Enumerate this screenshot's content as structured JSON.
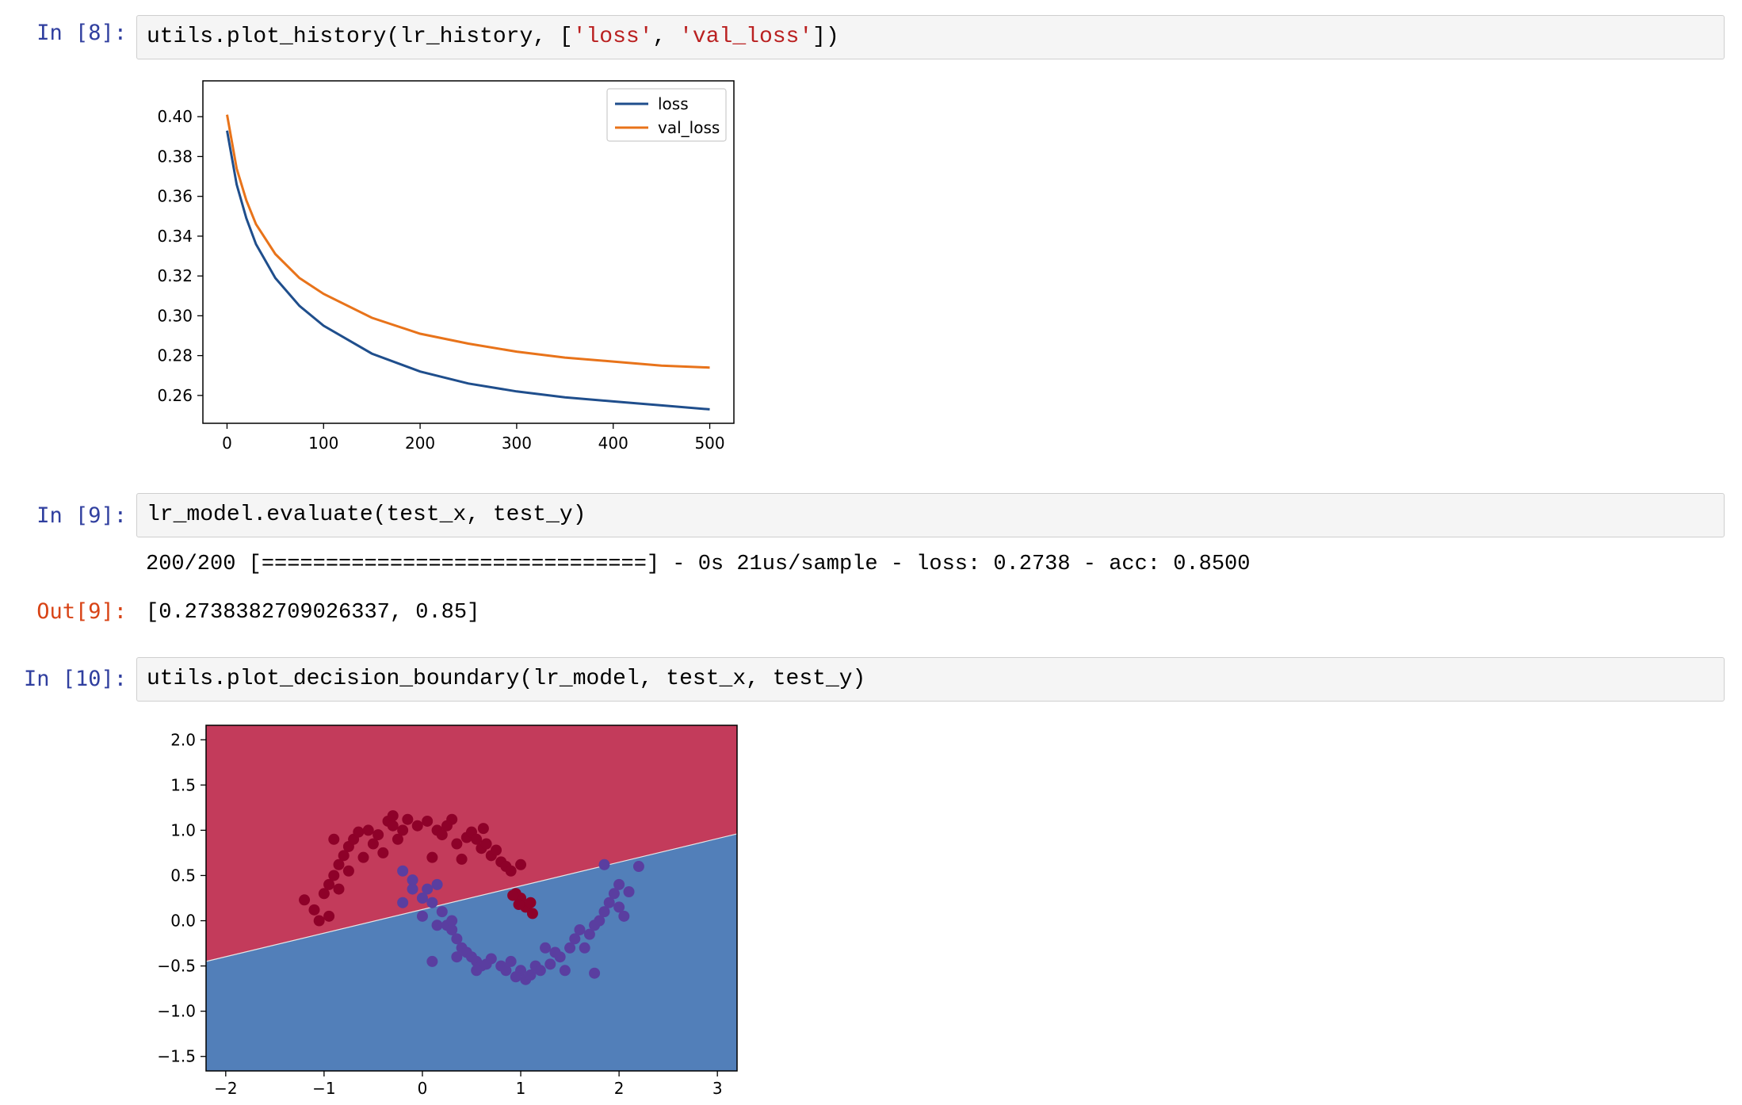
{
  "cells": [
    {
      "prompt": "In [8]:",
      "code_parts": [
        "utils.plot_history(lr_history, [",
        "'loss'",
        ", ",
        "'val_loss'",
        "])"
      ]
    },
    {
      "prompt": "In [9]:",
      "code": "lr_model.evaluate(test_x, test_y)",
      "stream": "200/200 [==============================] - 0s 21us/sample - loss: 0.2738 - acc: 0.8500",
      "out_prompt": "Out[9]:",
      "out_text": "[0.2738382709026337, 0.85]"
    },
    {
      "prompt": "In [10]:",
      "code": "utils.plot_decision_boundary(lr_model, test_x, test_y)"
    }
  ],
  "chart_data": [
    {
      "type": "line",
      "xlim": [
        -25,
        525
      ],
      "ylim": [
        0.246,
        0.418
      ],
      "xticks": [
        0,
        100,
        200,
        300,
        400,
        500
      ],
      "xtick_labels": [
        "0",
        "100",
        "200",
        "300",
        "400",
        "500"
      ],
      "yticks": [
        0.26,
        0.28,
        0.3,
        0.32,
        0.34,
        0.36,
        0.38,
        0.4
      ],
      "ytick_labels": [
        "0.26",
        "0.28",
        "0.30",
        "0.32",
        "0.34",
        "0.36",
        "0.38",
        "0.40"
      ],
      "legend_position": "upper right",
      "series": [
        {
          "name": "loss",
          "color": "#1f4e8c",
          "x": [
            0,
            10,
            20,
            30,
            50,
            75,
            100,
            150,
            200,
            250,
            300,
            350,
            400,
            450,
            500
          ],
          "values": [
            0.393,
            0.366,
            0.349,
            0.336,
            0.319,
            0.305,
            0.295,
            0.281,
            0.272,
            0.266,
            0.262,
            0.259,
            0.257,
            0.255,
            0.253
          ]
        },
        {
          "name": "val_loss",
          "color": "#e8731a",
          "x": [
            0,
            10,
            20,
            30,
            50,
            75,
            100,
            150,
            200,
            250,
            300,
            350,
            400,
            450,
            500
          ],
          "values": [
            0.401,
            0.374,
            0.358,
            0.346,
            0.331,
            0.319,
            0.311,
            0.299,
            0.291,
            0.286,
            0.282,
            0.279,
            0.277,
            0.275,
            0.274
          ]
        }
      ]
    },
    {
      "type": "scatter",
      "xlim": [
        -2.2,
        3.2
      ],
      "ylim": [
        -1.66,
        2.16
      ],
      "xticks": [
        -2,
        -1,
        0,
        1,
        2,
        3
      ],
      "xtick_labels": [
        "−2",
        "−1",
        "0",
        "1",
        "2",
        "3"
      ],
      "yticks": [
        -1.5,
        -1.0,
        -0.5,
        0.0,
        0.5,
        1.0,
        1.5,
        2.0
      ],
      "ytick_labels": [
        "−1.5",
        "−1.0",
        "−0.5",
        "0.0",
        "0.5",
        "1.0",
        "1.5",
        "2.0"
      ],
      "boundary": {
        "x": [
          -2.2,
          3.2
        ],
        "y": [
          -0.45,
          0.96
        ]
      },
      "region_colors": {
        "upper": "#c33b5b",
        "lower": "#527fb9"
      },
      "point_colors": {
        "class_0": "#8e0129",
        "class_1": "#5a3ea0"
      },
      "class_0": [
        [
          -1.2,
          0.23
        ],
        [
          -1.1,
          0.12
        ],
        [
          -1.0,
          0.3
        ],
        [
          -0.95,
          0.4
        ],
        [
          -0.9,
          0.5
        ],
        [
          -0.85,
          0.62
        ],
        [
          -0.8,
          0.72
        ],
        [
          -0.75,
          0.82
        ],
        [
          -0.7,
          0.9
        ],
        [
          -0.65,
          0.98
        ],
        [
          -0.55,
          1.0
        ],
        [
          -0.5,
          0.85
        ],
        [
          -0.45,
          0.95
        ],
        [
          -0.35,
          1.1
        ],
        [
          -0.3,
          1.05
        ],
        [
          -0.25,
          0.9
        ],
        [
          -0.2,
          1.0
        ],
        [
          -0.15,
          1.12
        ],
        [
          -0.05,
          1.05
        ],
        [
          0.05,
          1.1
        ],
        [
          0.15,
          1.0
        ],
        [
          0.2,
          0.95
        ],
        [
          0.3,
          1.12
        ],
        [
          0.35,
          0.85
        ],
        [
          0.45,
          0.92
        ],
        [
          0.5,
          0.98
        ],
        [
          0.55,
          0.9
        ],
        [
          0.6,
          0.8
        ],
        [
          0.65,
          0.85
        ],
        [
          0.7,
          0.72
        ],
        [
          0.75,
          0.78
        ],
        [
          0.8,
          0.65
        ],
        [
          0.85,
          0.6
        ],
        [
          0.9,
          0.55
        ],
        [
          0.95,
          0.3
        ],
        [
          1.0,
          0.25
        ],
        [
          1.05,
          0.15
        ],
        [
          1.1,
          0.2
        ],
        [
          0.98,
          0.18
        ],
        [
          0.92,
          0.28
        ],
        [
          -0.6,
          0.7
        ],
        [
          -0.4,
          0.75
        ],
        [
          -0.85,
          0.35
        ],
        [
          -0.75,
          0.55
        ],
        [
          -1.05,
          0.0
        ],
        [
          -0.95,
          0.05
        ],
        [
          0.1,
          0.7
        ],
        [
          0.4,
          0.68
        ],
        [
          1.12,
          0.08
        ],
        [
          1.0,
          0.62
        ],
        [
          -0.3,
          1.16
        ],
        [
          0.62,
          1.02
        ],
        [
          -0.9,
          0.9
        ],
        [
          0.25,
          1.05
        ]
      ],
      "class_1": [
        [
          -0.2,
          0.2
        ],
        [
          -0.1,
          0.45
        ],
        [
          0.0,
          0.25
        ],
        [
          0.05,
          0.35
        ],
        [
          0.1,
          0.2
        ],
        [
          0.15,
          0.4
        ],
        [
          0.2,
          0.1
        ],
        [
          0.25,
          -0.05
        ],
        [
          0.3,
          -0.1
        ],
        [
          0.35,
          -0.2
        ],
        [
          0.4,
          -0.3
        ],
        [
          0.45,
          -0.35
        ],
        [
          0.5,
          -0.4
        ],
        [
          0.55,
          -0.45
        ],
        [
          0.6,
          -0.5
        ],
        [
          0.65,
          -0.48
        ],
        [
          0.7,
          -0.42
        ],
        [
          0.8,
          -0.5
        ],
        [
          0.85,
          -0.55
        ],
        [
          0.9,
          -0.45
        ],
        [
          1.0,
          -0.55
        ],
        [
          1.05,
          -0.65
        ],
        [
          1.1,
          -0.6
        ],
        [
          1.15,
          -0.5
        ],
        [
          1.2,
          -0.55
        ],
        [
          1.3,
          -0.48
        ],
        [
          1.4,
          -0.4
        ],
        [
          1.5,
          -0.3
        ],
        [
          1.55,
          -0.2
        ],
        [
          1.6,
          -0.1
        ],
        [
          1.7,
          -0.15
        ],
        [
          1.75,
          -0.05
        ],
        [
          1.8,
          0.0
        ],
        [
          1.85,
          0.1
        ],
        [
          1.9,
          0.2
        ],
        [
          1.95,
          0.3
        ],
        [
          2.0,
          0.15
        ],
        [
          2.05,
          0.05
        ],
        [
          2.1,
          0.32
        ],
        [
          2.2,
          0.6
        ],
        [
          1.85,
          0.62
        ],
        [
          1.65,
          -0.3
        ],
        [
          1.35,
          -0.35
        ],
        [
          0.1,
          -0.45
        ],
        [
          -0.2,
          0.55
        ],
        [
          0.0,
          0.05
        ],
        [
          0.15,
          -0.05
        ],
        [
          0.3,
          0.0
        ],
        [
          1.75,
          -0.58
        ],
        [
          1.25,
          -0.3
        ],
        [
          0.55,
          -0.55
        ],
        [
          0.95,
          -0.62
        ],
        [
          1.45,
          -0.55
        ],
        [
          0.35,
          -0.4
        ],
        [
          2.0,
          0.4
        ],
        [
          -0.1,
          0.35
        ]
      ]
    }
  ]
}
